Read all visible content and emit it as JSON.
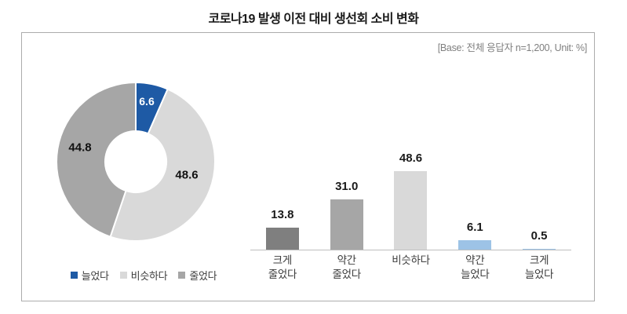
{
  "title": "코로나19 발생 이전 대비 생선회 소비 변화",
  "base_note": "[Base: 전체 응답자 n=1,200, Unit: %]",
  "colors": {
    "accent_blue": "#1E5AA5",
    "light_gray": "#D9D9D9",
    "mid_gray": "#A6A6A6",
    "dark_gray": "#7F7F7F",
    "light_blue": "#9DC3E6",
    "axis": "#BFBFBF",
    "panel_border": "#ACACAC"
  },
  "legend": {
    "items": [
      {
        "label": "늘었다",
        "color": "#1E5AA5"
      },
      {
        "label": "비슷하다",
        "color": "#D9D9D9"
      },
      {
        "label": "줄었다",
        "color": "#A6A6A6"
      }
    ]
  },
  "chart_data": [
    {
      "type": "pie",
      "subtype": "donut",
      "unit": "%",
      "start_angle_deg": 0,
      "direction": "clockwise",
      "legend_position": "bottom",
      "slices": [
        {
          "label": "늘었다",
          "value": 6.6,
          "display": "6.6",
          "color": "#1E5AA5"
        },
        {
          "label": "비슷하다",
          "value": 48.6,
          "display": "48.6",
          "color": "#D9D9D9"
        },
        {
          "label": "줄었다",
          "value": 44.8,
          "display": "44.8",
          "color": "#A6A6A6"
        }
      ]
    },
    {
      "type": "bar",
      "unit": "%",
      "grid": false,
      "ylim": [
        0,
        55
      ],
      "categories": [
        "크게 줄었다",
        "약간 줄었다",
        "비슷하다",
        "약간 늘었다",
        "크게 늘었다"
      ],
      "categories_display": [
        "크게\n줄었다",
        "약간\n줄었다",
        "비슷하다",
        "약간\n늘었다",
        "크게\n늘었다"
      ],
      "values": [
        13.8,
        31.0,
        48.6,
        6.1,
        0.5
      ],
      "labels": [
        "13.8",
        "31.0",
        "48.6",
        "6.1",
        "0.5"
      ],
      "bar_colors": [
        "#7F7F7F",
        "#A6A6A6",
        "#D9D9D9",
        "#9DC3E6",
        "#9DC3E6"
      ]
    }
  ]
}
